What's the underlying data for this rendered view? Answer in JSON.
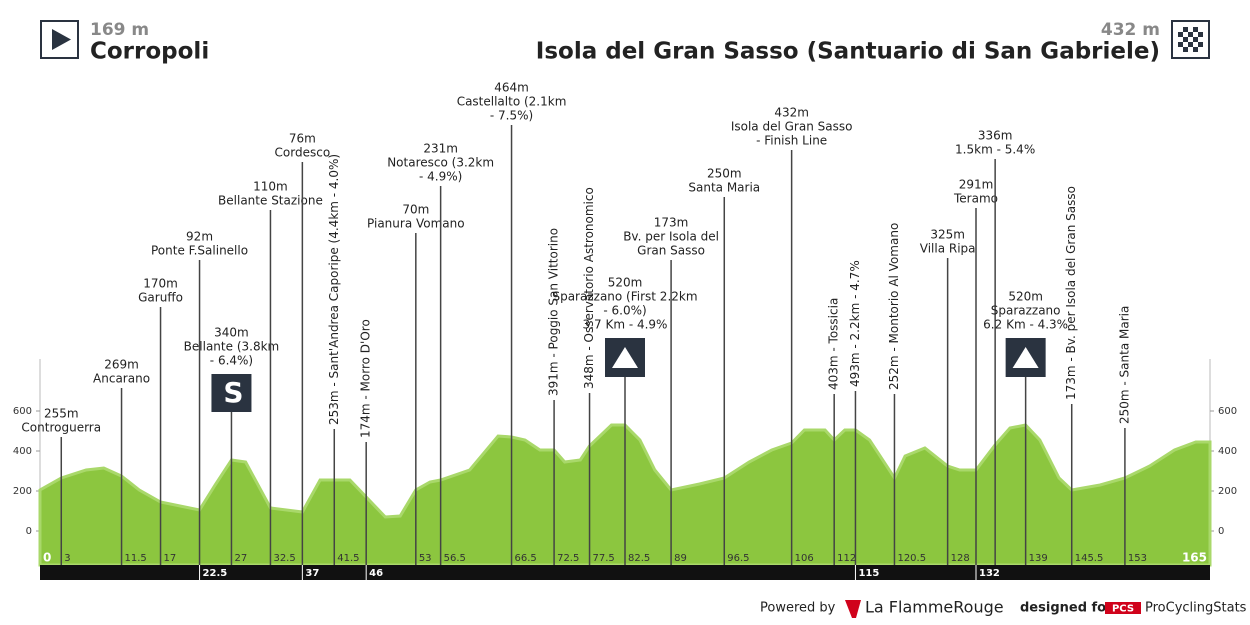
{
  "header": {
    "start_elevation": "169 m",
    "start_name": "Corropoli",
    "finish_elevation": "432 m",
    "finish_name": "Isola del Gran Sasso (Santuario di San Gabriele)"
  },
  "chart_data": {
    "type": "area",
    "color": "#8cc63f",
    "x": [
      0,
      3,
      6.5,
      9,
      11.5,
      14,
      17,
      22.5,
      24.7,
      27,
      29,
      32.5,
      37,
      39.5,
      41.5,
      43.7,
      46,
      48.7,
      50.8,
      53,
      55,
      56.5,
      60.6,
      64.6,
      66.5,
      68.4,
      70.5,
      72.5,
      74,
      76.2,
      77.5,
      80.6,
      82.5,
      84.6,
      86.7,
      89,
      93,
      96.5,
      100,
      103.2,
      106,
      107.8,
      110.7,
      112,
      113.5,
      115,
      117,
      120.5,
      122,
      124.8,
      128,
      129.7,
      132,
      134.7,
      136.8,
      139,
      141,
      143.7,
      145.5,
      149.5,
      153,
      156.5,
      160,
      163,
      165
    ],
    "values": [
      205,
      265,
      305,
      315,
      275,
      205,
      145,
      105,
      230,
      355,
      345,
      115,
      95,
      255,
      255,
      255,
      170,
      70,
      75,
      205,
      245,
      255,
      305,
      475,
      470,
      455,
      405,
      405,
      345,
      355,
      425,
      530,
      530,
      455,
      305,
      205,
      235,
      265,
      345,
      405,
      440,
      505,
      505,
      455,
      505,
      505,
      455,
      265,
      375,
      415,
      325,
      305,
      305,
      430,
      515,
      530,
      455,
      265,
      205,
      230,
      265,
      325,
      405,
      445,
      445
    ],
    "xlim": [
      0,
      165
    ],
    "ylim": [
      -170,
      860
    ],
    "yticks": [
      0,
      200,
      400,
      600
    ],
    "km_ticks": [
      0,
      3,
      11.5,
      17,
      27,
      32.5,
      41.5,
      53,
      56.5,
      66.5,
      72.5,
      77.5,
      82.5,
      89,
      96.5,
      106,
      112,
      120.5,
      128,
      139,
      145.5,
      153,
      165
    ],
    "km_ticks_strip": [
      22.5,
      37,
      46,
      115,
      132
    ],
    "waypoints": [
      {
        "km": 3,
        "lines": [
          "255m",
          "Controguerra"
        ]
      },
      {
        "km": 11.5,
        "lines": [
          "269m",
          "Ancarano"
        ]
      },
      {
        "km": 17,
        "lines": [
          "170m",
          "Garuffo"
        ]
      },
      {
        "km": 22.5,
        "lines": [
          "92m",
          "Ponte F.Salinello"
        ]
      },
      {
        "km": 27,
        "lines": [
          "340m",
          "Bellante (3.8km",
          "- 6.4%)"
        ],
        "icon": "sprint"
      },
      {
        "km": 32.5,
        "lines": [
          "110m",
          "Bellante Stazione"
        ]
      },
      {
        "km": 37,
        "lines": [
          "76m",
          "Cordesco"
        ]
      },
      {
        "km": 41.5,
        "vertical": "253m - Sant'Andrea Caporipe (4.4km - 4.0%)"
      },
      {
        "km": 46,
        "vertical": "174m - Morro D'Oro"
      },
      {
        "km": 53,
        "lines": [
          "70m",
          "Pianura Vomano"
        ]
      },
      {
        "km": 56.5,
        "lines": [
          "231m",
          "Notaresco (3.2km",
          "- 4.9%)"
        ]
      },
      {
        "km": 66.5,
        "lines": [
          "464m",
          "Castellalto (2.1km",
          "- 7.5%)"
        ]
      },
      {
        "km": 72.5,
        "vertical": "391m - Poggio San Vittorino"
      },
      {
        "km": 77.5,
        "vertical": "348m - Osservatorio Astronomico"
      },
      {
        "km": 82.5,
        "lines": [
          "520m",
          "Sparazzano (First 2.2km",
          "- 6.0%)",
          "3.7 Km - 4.9%"
        ],
        "icon": "kom"
      },
      {
        "km": 89,
        "lines": [
          "173m",
          "Bv. per Isola del",
          "Gran Sasso"
        ]
      },
      {
        "km": 96.5,
        "lines": [
          "250m",
          "Santa Maria"
        ]
      },
      {
        "km": 106,
        "lines": [
          "432m",
          "Isola del Gran Sasso",
          "- Finish Line"
        ]
      },
      {
        "km": 112,
        "vertical": "403m - Tossicia"
      },
      {
        "km": 115,
        "vertical": "493m - 2.2km - 4.7%"
      },
      {
        "km": 120.5,
        "vertical": "252m - Montorio Al Vomano"
      },
      {
        "km": 128,
        "lines": [
          "325m",
          "Villa Ripa"
        ]
      },
      {
        "km": 132,
        "lines": [
          "291m",
          "Teramo"
        ]
      },
      {
        "km": 134.7,
        "lines": [
          "336m",
          "1.5km - 5.4%"
        ]
      },
      {
        "km": 139,
        "lines": [
          "520m",
          "Sparazzano",
          "6.2 Km - 4.3%"
        ],
        "icon": "kom"
      },
      {
        "km": 145.5,
        "vertical": "173m - Bv. per Isola del Gran Sasso"
      },
      {
        "km": 153,
        "vertical": "250m - Santa Maria"
      }
    ]
  },
  "footer": {
    "powered_by": "Powered by",
    "brand": "La FlammeRouge",
    "designed_for": "designed for",
    "pcs": "PCS",
    "pcs_name": "ProCyclingStats"
  }
}
